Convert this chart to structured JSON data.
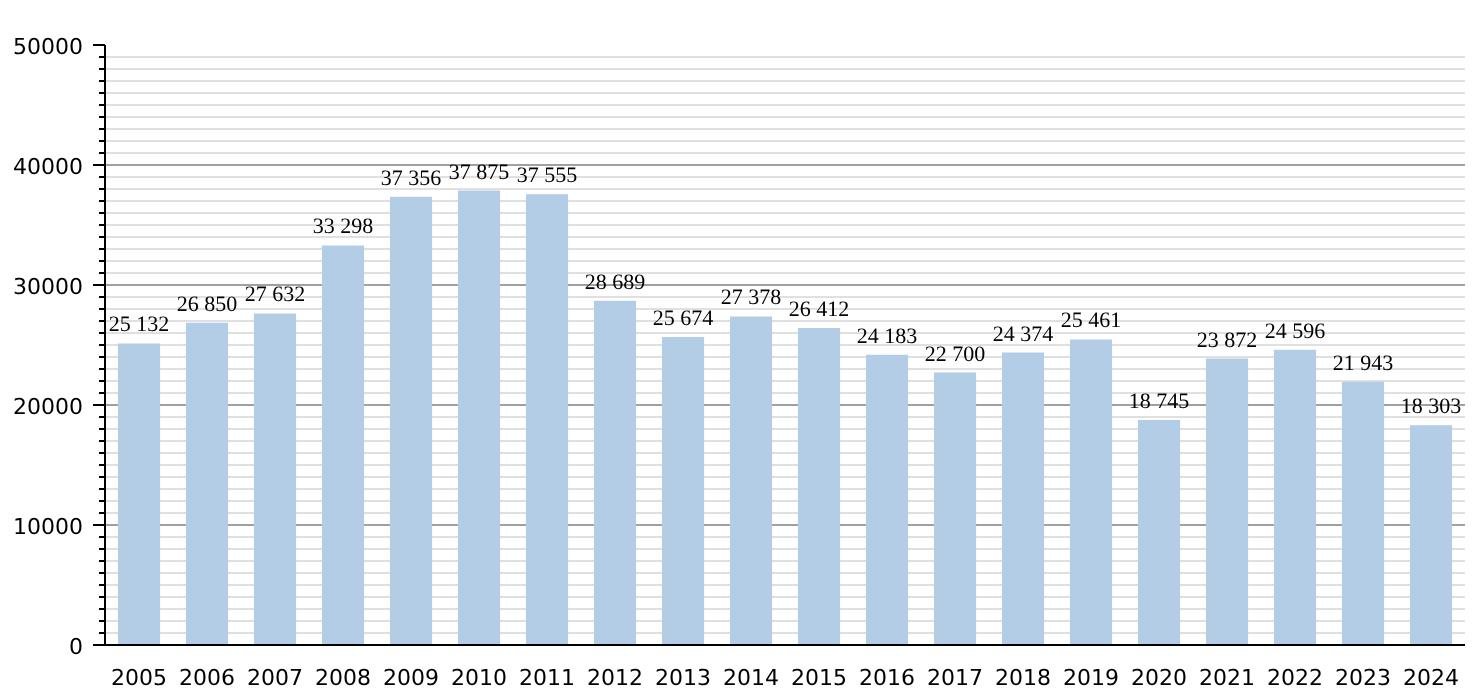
{
  "chart_data": {
    "type": "bar",
    "categories": [
      "2005",
      "2006",
      "2007",
      "2008",
      "2009",
      "2010",
      "2011",
      "2012",
      "2013",
      "2014",
      "2015",
      "2016",
      "2017",
      "2018",
      "2019",
      "2020",
      "2021",
      "2022",
      "2023",
      "2024"
    ],
    "values": [
      25132,
      26850,
      27632,
      33298,
      37356,
      37875,
      37555,
      28689,
      25674,
      27378,
      26412,
      24183,
      22700,
      24374,
      25461,
      18745,
      23872,
      24596,
      21943,
      18303
    ],
    "value_labels": [
      "25 132",
      "26 850",
      "27 632",
      "33 298",
      "37 356",
      "37 875",
      "37 555",
      "28 689",
      "25 674",
      "27 378",
      "26 412",
      "24 183",
      "22 700",
      "24 374",
      "25 461",
      "18 745",
      "23 872",
      "24 596",
      "21 943",
      "18 303"
    ],
    "color": "#b3cde6",
    "ylim": [
      0,
      50000
    ],
    "yticks": [
      0,
      10000,
      20000,
      30000,
      40000,
      50000
    ],
    "grid": "y"
  }
}
